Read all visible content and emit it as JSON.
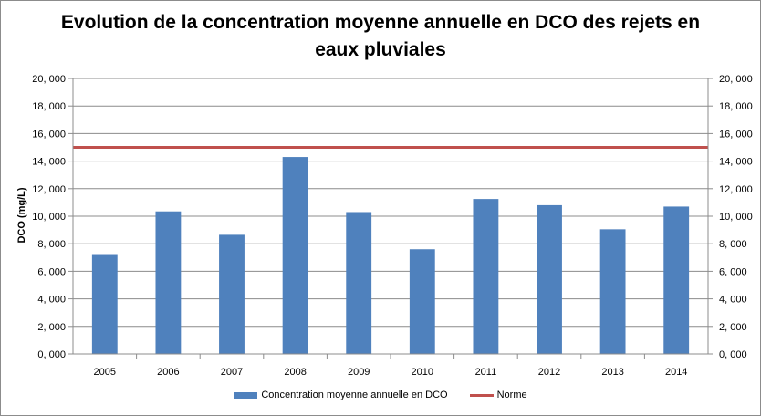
{
  "chart_data": {
    "type": "bar",
    "title_line1": "Evolution de la concentration moyenne annuelle en DCO des rejets en",
    "title_line2": "eaux pluviales",
    "ylabel": "DCO (mg/L)",
    "xlabel": "",
    "categories": [
      "2005",
      "2006",
      "2007",
      "2008",
      "2009",
      "2010",
      "2011",
      "2012",
      "2013",
      "2014"
    ],
    "series": [
      {
        "name": "Concentration moyenne annuelle en DCO",
        "type": "bar",
        "color": "#4f81bd",
        "values": [
          7.25,
          10.35,
          8.65,
          14.3,
          10.3,
          7.6,
          11.25,
          10.8,
          9.05,
          10.7
        ]
      },
      {
        "name": "Norme",
        "type": "line",
        "color": "#c0504d",
        "value": 15
      }
    ],
    "ylim": [
      0,
      20
    ],
    "yticks": [
      0,
      2,
      4,
      6,
      8,
      10,
      12,
      14,
      16,
      18,
      20
    ],
    "ytick_labels": [
      "0, 000",
      "2, 000",
      "4, 000",
      "6, 000",
      "8, 000",
      "10, 000",
      "12, 000",
      "14, 000",
      "16, 000",
      "18, 000",
      "20, 000"
    ],
    "secondary_axis": true,
    "grid": "horizontal",
    "legend": "bottom"
  }
}
